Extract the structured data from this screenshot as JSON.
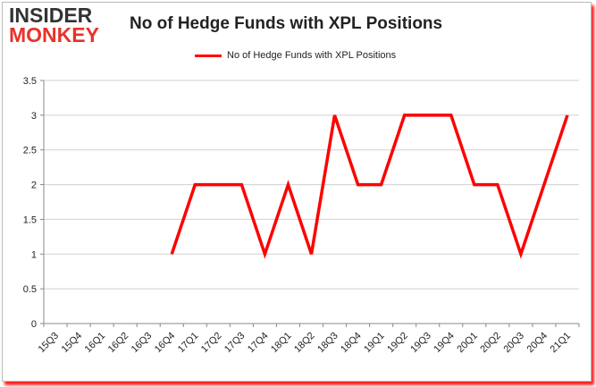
{
  "logo": {
    "line1": "INSIDER",
    "line2": "MONKEY"
  },
  "chart_data": {
    "type": "line",
    "title": "No of Hedge Funds with XPL Positions",
    "categories": [
      "15Q3",
      "15Q4",
      "16Q1",
      "16Q2",
      "16Q3",
      "16Q4",
      "17Q1",
      "17Q2",
      "17Q3",
      "17Q4",
      "18Q1",
      "18Q2",
      "18Q3",
      "18Q4",
      "19Q1",
      "19Q2",
      "19Q3",
      "19Q4",
      "20Q1",
      "20Q2",
      "20Q3",
      "20Q4",
      "21Q1"
    ],
    "series": [
      {
        "name": "No of Hedge Funds with XPL Positions",
        "color": "#ff0000",
        "values": [
          null,
          null,
          null,
          null,
          null,
          1,
          2,
          2,
          2,
          1,
          2,
          1,
          3,
          2,
          2,
          3,
          3,
          3,
          2,
          2,
          1,
          2,
          3
        ]
      }
    ],
    "ylim": [
      0,
      3.5
    ],
    "yticks": [
      "0",
      "0.5",
      "1",
      "1.5",
      "2",
      "2.5",
      "3",
      "3.5"
    ],
    "grid": true,
    "legend": "top"
  }
}
